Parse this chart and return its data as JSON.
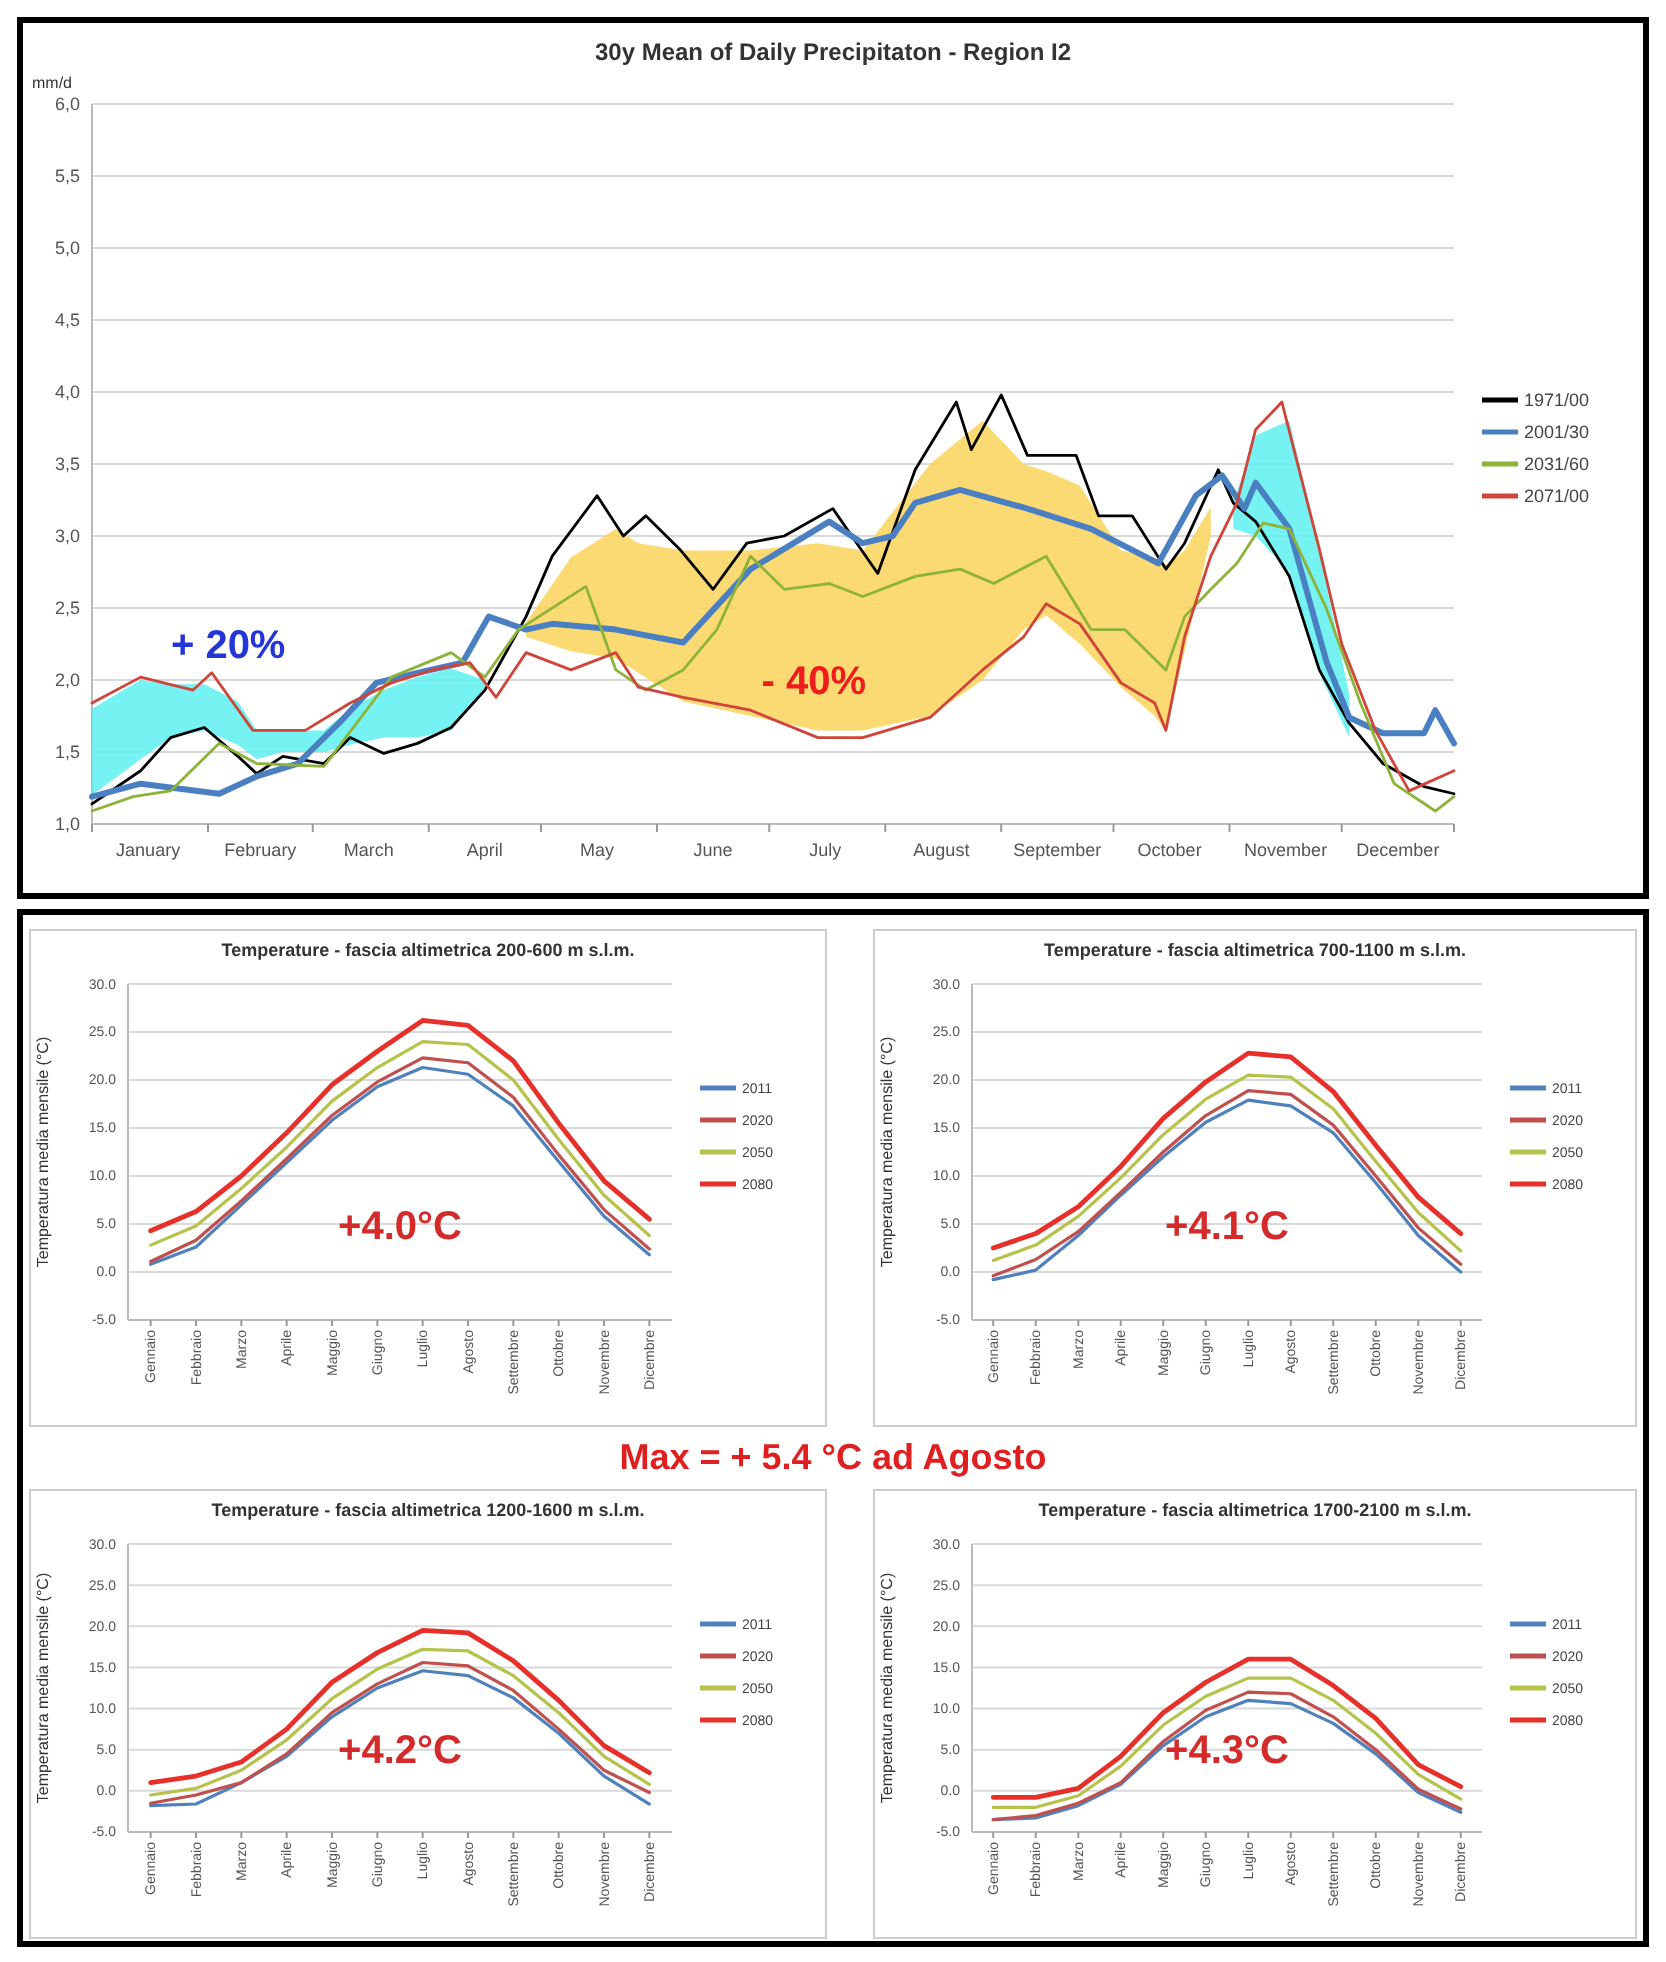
{
  "chart_data": [
    {
      "type": "line",
      "title": "30y Mean of Daily Precipitaton - Region I2",
      "ylabel": "mm/d",
      "xlim": [
        "--01-01",
        "--12-31"
      ],
      "xticks": [
        {
          "value": "--01-01",
          "label": null
        },
        {
          "value": "--01-16",
          "label": "January"
        },
        {
          "value": "--02-01",
          "label": null
        },
        {
          "value": "--02-15",
          "label": "February"
        },
        {
          "value": "--03-01",
          "label": null
        },
        {
          "value": "--03-16",
          "label": "March"
        },
        {
          "value": "--04-01",
          "label": null
        },
        {
          "value": "--04-16",
          "label": "April"
        },
        {
          "value": "--05-01",
          "label": null
        },
        {
          "value": "--05-16",
          "label": "May"
        },
        {
          "value": "--06-01",
          "label": null
        },
        {
          "value": "--06-16",
          "label": "June"
        },
        {
          "value": "--07-01",
          "label": null
        },
        {
          "value": "--07-16",
          "label": "July"
        },
        {
          "value": "--08-01",
          "label": null
        },
        {
          "value": "--08-16",
          "label": "August"
        },
        {
          "value": "--09-01",
          "label": null
        },
        {
          "value": "--09-16",
          "label": "September"
        },
        {
          "value": "--10-01",
          "label": null
        },
        {
          "value": "--10-16",
          "label": "October"
        },
        {
          "value": "--11-01",
          "label": null
        },
        {
          "value": "--11-16",
          "label": "November"
        },
        {
          "value": "--12-01",
          "label": null
        },
        {
          "value": "--12-16",
          "label": "December"
        },
        {
          "value": "--12-31",
          "label": null
        }
      ],
      "ylim": [
        1,
        6
      ],
      "yticks": [
        {
          "value": 1,
          "label": "1,0"
        },
        {
          "value": 1.5,
          "label": "1,5"
        },
        {
          "value": 2,
          "label": "2,0"
        },
        {
          "value": 2.5,
          "label": "2,5"
        },
        {
          "value": 3,
          "label": "3,0"
        },
        {
          "value": 3.5,
          "label": "3,5"
        },
        {
          "value": 4,
          "label": "4,0"
        },
        {
          "value": 4.5,
          "label": "4,5"
        },
        {
          "value": 5,
          "label": "5,0"
        },
        {
          "value": 5.5,
          "label": "5,5"
        },
        {
          "value": 6,
          "label": "6,0"
        }
      ],
      "grid": "y",
      "legend": "right",
      "annotations": [
        "+ 20%",
        "- 40%"
      ],
      "series": [
        {
          "name": "1971/00",
          "color": "#000000",
          "x": [
            "--01-01",
            "--01-14",
            "--01-22",
            "--01-31",
            "--02-09",
            "--02-14",
            "--02-21",
            "--03-04",
            "--03-11",
            "--03-20",
            "--03-29",
            "--04-07",
            "--04-16",
            "--04-27",
            "--05-04",
            "--05-16",
            "--05-23",
            "--05-29",
            "--06-07",
            "--06-16",
            "--06-25",
            "--07-05",
            "--07-18",
            "--07-30",
            "--08-09",
            "--08-20",
            "--08-24",
            "--09-01",
            "--09-08",
            "--09-21",
            "--09-27",
            "--10-06",
            "--10-15",
            "--10-20",
            "--10-29",
            "--11-02",
            "--11-08",
            "--11-17",
            "--11-25",
            "--12-03",
            "--12-12",
            "--12-23",
            "--12-31"
          ],
          "values": [
            1.14,
            1.37,
            1.6,
            1.67,
            1.47,
            1.35,
            1.47,
            1.42,
            1.6,
            1.49,
            1.56,
            1.67,
            1.93,
            2.44,
            2.86,
            3.28,
            3.0,
            3.14,
            2.91,
            2.63,
            2.95,
            3.0,
            3.19,
            2.74,
            3.46,
            3.93,
            3.6,
            3.98,
            3.56,
            3.56,
            3.14,
            3.14,
            2.77,
            2.95,
            3.46,
            3.23,
            3.1,
            2.72,
            2.07,
            1.7,
            1.42,
            1.26,
            1.21
          ],
          "lower": [
            1.2,
            1.45,
            1.6,
            1.65,
            1.55,
            1.45,
            1.5,
            1.5,
            1.55,
            1.6,
            1.6,
            1.65,
            1.95,
            null,
            null,
            null,
            null,
            null,
            null,
            null,
            null,
            null,
            null,
            null,
            null,
            null,
            null,
            null,
            null,
            null,
            null,
            null,
            null,
            null,
            null,
            3.05,
            3.0,
            2.75,
            2.05,
            1.6,
            null,
            null,
            null
          ],
          "upper": [
            1.8,
            2.0,
            1.97,
            1.97,
            1.85,
            1.65,
            1.65,
            1.65,
            1.8,
            1.93,
            2.02,
            2.08,
            2.0,
            null,
            null,
            null,
            null,
            null,
            null,
            null,
            null,
            null,
            null,
            null,
            null,
            null,
            null,
            null,
            null,
            null,
            null,
            null,
            null,
            null,
            null,
            3.23,
            3.7,
            3.8,
            2.9,
            1.9,
            null,
            null,
            null
          ]
        },
        {
          "name": "2001/30",
          "color": "#4a7fc1",
          "x": [
            "--01-01",
            "--01-14",
            "--02-04",
            "--02-14",
            "--02-25",
            "--03-08",
            "--03-18",
            "--03-29",
            "--04-10",
            "--04-17",
            "--04-27",
            "--05-04",
            "--05-21",
            "--06-08",
            "--06-26",
            "--07-17",
            "--07-26",
            "--08-03",
            "--08-09",
            "--08-21",
            "--09-08",
            "--09-25",
            "--10-13",
            "--10-23",
            "--10-30",
            "--11-05",
            "--11-08",
            "--11-17",
            "--11-27",
            "--12-03",
            "--12-12",
            "--12-23",
            "--12-26",
            "--12-31"
          ],
          "values": [
            1.19,
            1.28,
            1.21,
            1.33,
            1.42,
            1.7,
            1.98,
            2.05,
            2.12,
            2.44,
            2.35,
            2.39,
            2.35,
            2.26,
            2.77,
            3.1,
            2.95,
            3.0,
            3.23,
            3.32,
            3.19,
            3.05,
            2.81,
            3.28,
            3.42,
            3.19,
            3.37,
            3.05,
            2.12,
            1.74,
            1.63,
            1.63,
            1.79,
            1.56
          ]
        },
        {
          "name": "2031/60",
          "color": "#8db33a",
          "x": [
            "--01-01",
            "--01-12",
            "--01-22",
            "--02-04",
            "--02-14",
            "--03-04",
            "--03-22",
            "--04-07",
            "--04-16",
            "--04-25",
            "--05-13",
            "--05-21",
            "--05-29",
            "--06-08",
            "--06-17",
            "--06-26",
            "--07-05",
            "--07-17",
            "--07-26",
            "--08-09",
            "--08-21",
            "--08-30",
            "--09-13",
            "--09-25",
            "--10-04",
            "--10-15",
            "--10-20",
            "--10-27",
            "--11-03",
            "--11-10",
            "--11-17",
            "--11-27",
            "--12-06",
            "--12-15",
            "--12-26",
            "--12-31"
          ],
          "values": [
            1.09,
            1.19,
            1.23,
            1.56,
            1.42,
            1.4,
            2.02,
            2.19,
            2.02,
            2.35,
            2.65,
            2.07,
            1.93,
            2.07,
            2.35,
            2.86,
            2.63,
            2.67,
            2.58,
            2.72,
            2.77,
            2.67,
            2.86,
            2.35,
            2.35,
            2.07,
            2.44,
            2.63,
            2.81,
            3.09,
            3.05,
            2.49,
            1.84,
            1.28,
            1.09,
            1.19
          ]
        },
        {
          "name": "2071/00",
          "color": "#d0453a",
          "x": [
            "--01-01",
            "--01-14",
            "--01-28",
            "--02-02",
            "--02-13",
            "--02-27",
            "--03-11",
            "--03-22",
            "--04-02",
            "--04-12",
            "--04-19",
            "--04-27",
            "--05-09",
            "--05-21",
            "--05-27",
            "--06-08",
            "--06-26",
            "--07-14",
            "--07-26",
            "--08-13",
            "--08-27",
            "--09-07",
            "--09-13",
            "--09-22",
            "--10-03",
            "--10-12",
            "--10-15",
            "--10-20",
            "--10-27",
            "--11-03",
            "--11-08",
            "--11-15",
            "--11-25",
            "--12-01",
            "--12-10",
            "--12-19",
            "--12-31"
          ],
          "values": [
            1.84,
            2.02,
            1.93,
            2.05,
            1.65,
            1.65,
            1.84,
            1.98,
            2.07,
            2.12,
            1.88,
            2.19,
            2.07,
            2.19,
            1.95,
            1.88,
            1.79,
            1.6,
            1.6,
            1.74,
            2.07,
            2.3,
            2.53,
            2.39,
            1.98,
            1.84,
            1.65,
            2.3,
            2.86,
            3.23,
            3.74,
            3.93,
            2.91,
            2.25,
            1.65,
            1.23,
            1.37
          ],
          "lower": [
            null,
            null,
            null,
            null,
            null,
            null,
            null,
            null,
            null,
            null,
            null,
            2.3,
            2.2,
            2.15,
            2.05,
            1.85,
            1.75,
            1.65,
            1.65,
            1.75,
            2.0,
            2.35,
            2.45,
            2.25,
            1.95,
            1.75,
            1.65,
            2.2,
            3.0,
            null,
            null,
            null,
            null,
            null,
            null,
            null,
            null
          ],
          "upper": [
            null,
            null,
            null,
            null,
            null,
            null,
            null,
            null,
            null,
            null,
            null,
            2.4,
            2.85,
            3.05,
            2.95,
            2.9,
            2.9,
            2.95,
            2.9,
            3.5,
            3.8,
            3.5,
            3.45,
            3.35,
            2.9,
            2.85,
            2.8,
            2.9,
            3.2,
            null,
            null,
            null,
            null,
            null,
            null,
            null,
            null
          ]
        }
      ]
    },
    {
      "type": "line",
      "title": "Temperature - fascia altimetrica 200-600 m s.l.m.",
      "ylabel": "Temperatura media mensile (°C)",
      "categories": [
        "Gennaio",
        "Febbraio",
        "Marzo",
        "Aprile",
        "Maggio",
        "Giugno",
        "Luglio",
        "Agosto",
        "Settembre",
        "Ottobre",
        "Novembre",
        "Dicembre"
      ],
      "ylim": [
        -5,
        30
      ],
      "yticks": [
        {
          "value": -5,
          "label": "-5.0"
        },
        {
          "value": 0,
          "label": "0.0"
        },
        {
          "value": 5,
          "label": "5.0"
        },
        {
          "value": 10,
          "label": "10.0"
        },
        {
          "value": 15,
          "label": "15.0"
        },
        {
          "value": 20,
          "label": "20.0"
        },
        {
          "value": 25,
          "label": "25.0"
        },
        {
          "value": 30,
          "label": "30.0"
        }
      ],
      "grid": "y",
      "legend": "right",
      "annotations": [
        "+4.0°C"
      ],
      "series": [
        {
          "name": "2011",
          "color": "#4f81bd",
          "values": [
            0.8,
            2.6,
            7.0,
            11.4,
            15.8,
            19.3,
            21.3,
            20.6,
            17.3,
            11.5,
            5.8,
            1.8
          ]
        },
        {
          "name": "2020",
          "color": "#c0504d",
          "values": [
            1.1,
            3.3,
            7.4,
            11.8,
            16.3,
            19.8,
            22.3,
            21.8,
            18.2,
            12.2,
            6.5,
            2.4
          ]
        },
        {
          "name": "2050",
          "color": "#b5c34a",
          "values": [
            2.8,
            4.8,
            8.7,
            13.0,
            17.8,
            21.3,
            24.0,
            23.7,
            20.0,
            13.8,
            8.0,
            3.8
          ]
        },
        {
          "name": "2080",
          "color": "#e8302a",
          "values": [
            4.3,
            6.3,
            10.0,
            14.5,
            19.5,
            23.0,
            26.2,
            25.7,
            22.0,
            15.5,
            9.5,
            5.5
          ]
        }
      ]
    },
    {
      "type": "line",
      "title": "Temperature - fascia altimetrica 700-1100 m s.l.m.",
      "ylabel": "Temperatura media mensile (°C)",
      "categories": [
        "Gennaio",
        "Febbraio",
        "Marzo",
        "Aprile",
        "Maggio",
        "Giugno",
        "Luglio",
        "Agosto",
        "Settembre",
        "Ottobre",
        "Novembre",
        "Dicembre"
      ],
      "ylim": [
        -5,
        30
      ],
      "yticks": [
        {
          "value": -5,
          "label": "-5.0"
        },
        {
          "value": 0,
          "label": "0.0"
        },
        {
          "value": 5,
          "label": "5.0"
        },
        {
          "value": 10,
          "label": "10.0"
        },
        {
          "value": 15,
          "label": "15.0"
        },
        {
          "value": 20,
          "label": "20.0"
        },
        {
          "value": 25,
          "label": "25.0"
        },
        {
          "value": 30,
          "label": "30.0"
        }
      ],
      "grid": "y",
      "legend": "right",
      "annotations": [
        "+4.1°C"
      ],
      "series": [
        {
          "name": "2011",
          "color": "#4f81bd",
          "values": [
            -0.8,
            0.2,
            3.8,
            8.0,
            12.0,
            15.6,
            17.9,
            17.3,
            14.5,
            9.3,
            3.8,
            0.0
          ]
        },
        {
          "name": "2020",
          "color": "#c0504d",
          "values": [
            -0.4,
            1.3,
            4.2,
            8.3,
            12.5,
            16.3,
            18.9,
            18.5,
            15.3,
            10.0,
            4.6,
            0.8
          ]
        },
        {
          "name": "2050",
          "color": "#b5c34a",
          "values": [
            1.2,
            2.8,
            5.8,
            9.8,
            14.3,
            18.0,
            20.5,
            20.3,
            17.0,
            11.5,
            6.2,
            2.2
          ]
        },
        {
          "name": "2080",
          "color": "#e8302a",
          "values": [
            2.5,
            4.0,
            6.8,
            11.0,
            16.0,
            19.8,
            22.8,
            22.4,
            18.8,
            13.2,
            7.8,
            4.0
          ]
        }
      ]
    },
    {
      "type": "other",
      "title": "Max = + 5.4 °C ad Agosto"
    },
    {
      "type": "line",
      "title": "Temperature - fascia altimetrica 1200-1600 m s.l.m.",
      "ylabel": "Temperatura media mensile (°C)",
      "categories": [
        "Gennaio",
        "Febbraio",
        "Marzo",
        "Aprile",
        "Maggio",
        "Giugno",
        "Luglio",
        "Agosto",
        "Settembre",
        "Ottobre",
        "Novembre",
        "Dicembre"
      ],
      "ylim": [
        -5,
        30
      ],
      "yticks": [
        {
          "value": -5,
          "label": "-5.0"
        },
        {
          "value": 0,
          "label": "0.0"
        },
        {
          "value": 5,
          "label": "5.0"
        },
        {
          "value": 10,
          "label": "10.0"
        },
        {
          "value": 15,
          "label": "15.0"
        },
        {
          "value": 20,
          "label": "20.0"
        },
        {
          "value": 25,
          "label": "25.0"
        },
        {
          "value": 30,
          "label": "30.0"
        }
      ],
      "grid": "y",
      "legend": "right",
      "annotations": [
        "+4.2°C"
      ],
      "series": [
        {
          "name": "2011",
          "color": "#4f81bd",
          "values": [
            -1.8,
            -1.6,
            1.0,
            4.2,
            9.0,
            12.5,
            14.6,
            14.0,
            11.3,
            7.0,
            1.8,
            -1.6
          ]
        },
        {
          "name": "2020",
          "color": "#c0504d",
          "values": [
            -1.5,
            -0.5,
            1.0,
            4.5,
            9.5,
            13.0,
            15.6,
            15.2,
            12.2,
            7.5,
            2.5,
            -0.2
          ]
        },
        {
          "name": "2050",
          "color": "#b5c34a",
          "values": [
            -0.5,
            0.3,
            2.5,
            6.2,
            11.2,
            14.8,
            17.2,
            17.0,
            14.0,
            9.5,
            4.2,
            0.8
          ]
        },
        {
          "name": "2080",
          "color": "#e8302a",
          "values": [
            1.0,
            1.8,
            3.5,
            7.5,
            13.2,
            16.8,
            19.5,
            19.2,
            15.8,
            11.0,
            5.5,
            2.2
          ]
        }
      ]
    },
    {
      "type": "line",
      "title": "Temperature - fascia altimetrica 1700-2100 m s.l.m.",
      "ylabel": "Temperatura media mensile (°C)",
      "categories": [
        "Gennaio",
        "Febbraio",
        "Marzo",
        "Aprile",
        "Maggio",
        "Giugno",
        "Luglio",
        "Agosto",
        "Settembre",
        "Ottobre",
        "Novembre",
        "Dicembre"
      ],
      "ylim": [
        -5,
        30
      ],
      "yticks": [
        {
          "value": -5,
          "label": "-5.0"
        },
        {
          "value": 0,
          "label": "0.0"
        },
        {
          "value": 5,
          "label": "5.0"
        },
        {
          "value": 10,
          "label": "10.0"
        },
        {
          "value": 15,
          "label": "15.0"
        },
        {
          "value": 20,
          "label": "20.0"
        },
        {
          "value": 25,
          "label": "25.0"
        },
        {
          "value": 30,
          "label": "30.0"
        }
      ],
      "grid": "y",
      "legend": "right",
      "annotations": [
        "+4.3°C"
      ],
      "series": [
        {
          "name": "2011",
          "color": "#4f81bd",
          "values": [
            -3.5,
            -3.3,
            -1.8,
            0.8,
            5.5,
            9.0,
            11.0,
            10.6,
            8.2,
            4.5,
            -0.2,
            -2.6
          ]
        },
        {
          "name": "2020",
          "color": "#c0504d",
          "values": [
            -3.5,
            -3.0,
            -1.5,
            1.0,
            6.0,
            9.8,
            12.0,
            11.8,
            9.0,
            5.0,
            0.2,
            -2.2
          ]
        },
        {
          "name": "2050",
          "color": "#b5c34a",
          "values": [
            -2.0,
            -2.0,
            -0.6,
            3.0,
            8.0,
            11.5,
            13.7,
            13.7,
            11.0,
            7.0,
            2.0,
            -1.0
          ]
        },
        {
          "name": "2080",
          "color": "#e8302a",
          "values": [
            -0.8,
            -0.8,
            0.3,
            4.2,
            9.5,
            13.2,
            16.0,
            16.0,
            12.8,
            8.8,
            3.2,
            0.5
          ]
        }
      ]
    }
  ]
}
